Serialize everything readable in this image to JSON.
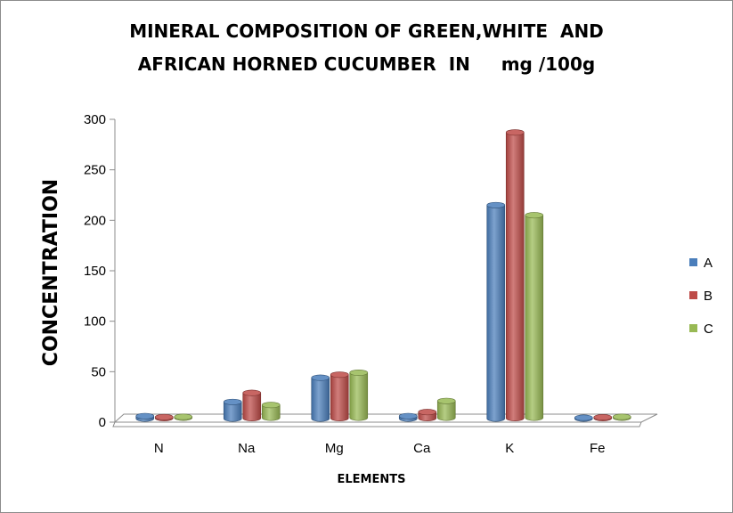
{
  "chart_data": {
    "type": "bar",
    "style": "3d-cylinder",
    "title_lines": [
      "MINERAL COMPOSITION OF GREEN,WHITE  AND",
      "AFRICAN HORNED CUCUMBER  IN     mg /100g"
    ],
    "xlabel": "ELEMENTS",
    "ylabel": "CONCENTRATION",
    "categories": [
      "N",
      "Na",
      "Mg",
      "Ca",
      "K",
      "Fe"
    ],
    "series": [
      {
        "name": "A",
        "color": "#4a7ebb",
        "values": [
          6,
          20,
          44,
          6,
          215,
          4
        ]
      },
      {
        "name": "B",
        "color": "#be4b48",
        "values": [
          5,
          29,
          47,
          10,
          287,
          1
        ]
      },
      {
        "name": "C",
        "color": "#98b954",
        "values": [
          5,
          17,
          49,
          21,
          205,
          1
        ]
      }
    ],
    "ylim": [
      0,
      300
    ],
    "yticks": [
      0,
      50,
      100,
      150,
      200,
      250,
      300
    ],
    "grid": false,
    "legend_position": "right"
  }
}
